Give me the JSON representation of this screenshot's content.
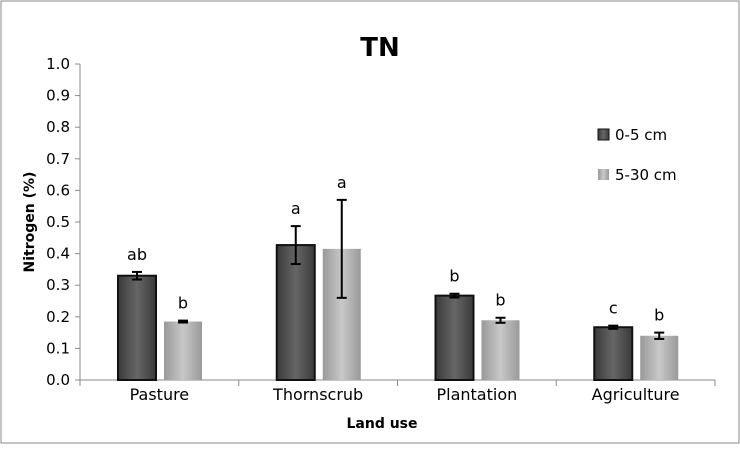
{
  "chart_data": {
    "type": "bar",
    "title": "TN",
    "xlabel": "Land use",
    "ylabel": "Nitrogen (%)",
    "ylim": [
      0,
      1.0
    ],
    "yticks": [
      "0.0",
      "0.1",
      "0.2",
      "0.3",
      "0.4",
      "0.5",
      "0.6",
      "0.7",
      "0.8",
      "0.9",
      "1.0"
    ],
    "categories": [
      "Pasture",
      "Thornscrub",
      "Plantation",
      "Agriculture"
    ],
    "legend_position": "right",
    "grid": false,
    "series": [
      {
        "name": "0-5 cm",
        "color": "#555555",
        "values": [
          0.33,
          0.427,
          0.267,
          0.167
        ],
        "errors": [
          0.012,
          0.06,
          0.006,
          0.005
        ],
        "letters": [
          "ab",
          "a",
          "b",
          "c"
        ]
      },
      {
        "name": "5-30 cm",
        "color": "#b0b0b0",
        "values": [
          0.185,
          0.415,
          0.189,
          0.14
        ],
        "errors": [
          0.003,
          0.155,
          0.008,
          0.01
        ],
        "letters": [
          "b",
          "a",
          "b",
          "b"
        ]
      }
    ]
  }
}
